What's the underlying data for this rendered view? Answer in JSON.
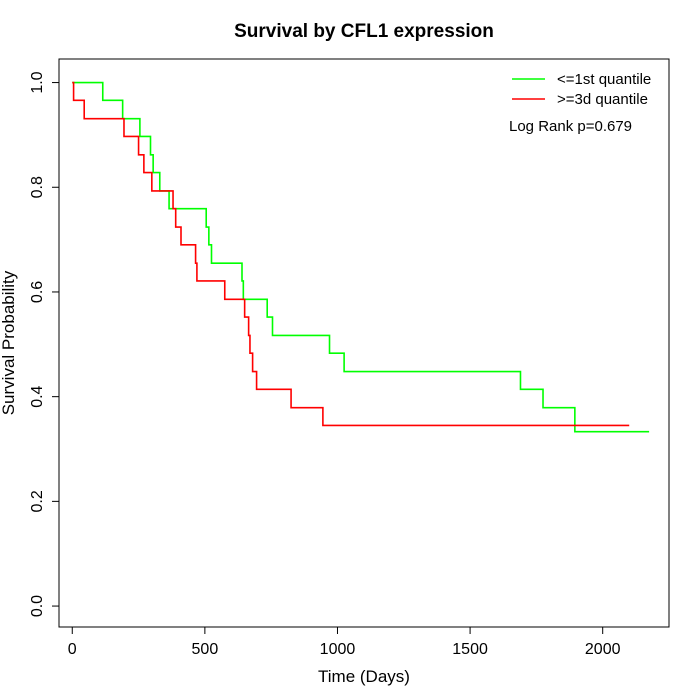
{
  "chart_data": {
    "type": "line",
    "title": "Survival by CFL1 expression",
    "xlabel": "Time (Days)",
    "ylabel": "Survival Probability",
    "xlim": [
      -50,
      2250
    ],
    "ylim": [
      -0.04,
      1.045
    ],
    "xticks": [
      0,
      500,
      1000,
      1500,
      2000
    ],
    "yticks": [
      0.0,
      0.2,
      0.4,
      0.6,
      0.8,
      1.0
    ],
    "xtick_labels": [
      "0",
      "500",
      "1000",
      "1500",
      "2000"
    ],
    "ytick_labels": [
      "0.0",
      "0.2",
      "0.4",
      "0.6",
      "0.8",
      "1.0"
    ],
    "grid": false,
    "legend_position": "top-right",
    "annotation": "Log Rank p=0.679",
    "series": [
      {
        "name": "<=1st quantile",
        "color": "#00ff00",
        "step_points": [
          [
            0,
            1.0
          ],
          [
            115,
            0.966
          ],
          [
            190,
            0.931
          ],
          [
            255,
            0.897
          ],
          [
            295,
            0.862
          ],
          [
            305,
            0.828
          ],
          [
            330,
            0.793
          ],
          [
            365,
            0.759
          ],
          [
            505,
            0.724
          ],
          [
            515,
            0.69
          ],
          [
            525,
            0.655
          ],
          [
            640,
            0.621
          ],
          [
            645,
            0.586
          ],
          [
            735,
            0.552
          ],
          [
            755,
            0.517
          ],
          [
            970,
            0.483
          ],
          [
            1025,
            0.448
          ],
          [
            1690,
            0.414
          ],
          [
            1775,
            0.379
          ],
          [
            1895,
            0.333
          ],
          [
            2175,
            0.333
          ]
        ]
      },
      {
        "name": ">=3d quantile",
        "color": "#ff0000",
        "step_points": [
          [
            0,
            1.0
          ],
          [
            5,
            0.966
          ],
          [
            45,
            0.931
          ],
          [
            195,
            0.897
          ],
          [
            250,
            0.862
          ],
          [
            270,
            0.828
          ],
          [
            300,
            0.793
          ],
          [
            380,
            0.759
          ],
          [
            390,
            0.724
          ],
          [
            410,
            0.69
          ],
          [
            465,
            0.655
          ],
          [
            470,
            0.621
          ],
          [
            575,
            0.586
          ],
          [
            650,
            0.552
          ],
          [
            665,
            0.517
          ],
          [
            670,
            0.483
          ],
          [
            680,
            0.448
          ],
          [
            695,
            0.414
          ],
          [
            825,
            0.379
          ],
          [
            945,
            0.345
          ],
          [
            2100,
            0.345
          ]
        ]
      }
    ]
  }
}
